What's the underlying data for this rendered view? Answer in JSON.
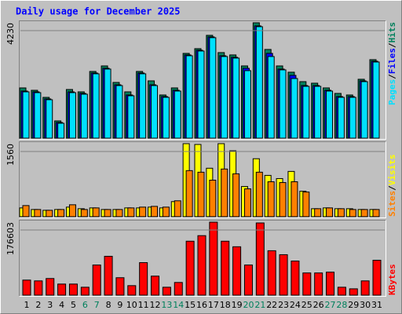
{
  "title": "Daily usage for December 2025",
  "chart_data": [
    {
      "type": "bar",
      "separator": "/",
      "ylim": [
        0,
        4230
      ],
      "yticks": [
        4230
      ],
      "series": [
        {
          "name": "Hits",
          "color": "#00805c",
          "values": [
            1842,
            1755,
            1496,
            633,
            1784,
            1698,
            2446,
            2648,
            2043,
            1698,
            2446,
            2101,
            1583,
            1842,
            3108,
            3281,
            3770,
            3137,
            3051,
            2648,
            4230,
            3252,
            2648,
            2418,
            2072,
            2015,
            1842,
            1640,
            1583,
            2159,
            2878
          ]
        },
        {
          "name": "Files",
          "color": "#0000ff",
          "values": [
            1727,
            1698,
            1439,
            576,
            1698,
            1641,
            2389,
            2562,
            1957,
            1583,
            2389,
            1957,
            1526,
            1756,
            3051,
            3224,
            3713,
            3022,
            2965,
            2561,
            4116,
            3108,
            2533,
            2302,
            1929,
            1929,
            1756,
            1526,
            1526,
            2101,
            2821
          ]
        },
        {
          "name": "Pages",
          "color": "#00e0ff",
          "values": [
            1698,
            1669,
            1410,
            547,
            1669,
            1612,
            2360,
            2533,
            1928,
            1554,
            2360,
            1928,
            1497,
            1727,
            3022,
            3195,
            3684,
            2993,
            2936,
            2475,
            4087,
            2993,
            2504,
            2187,
            1900,
            1900,
            1727,
            1497,
            1497,
            2072,
            2792
          ]
        }
      ]
    },
    {
      "type": "bar",
      "separator": "/",
      "ylim": [
        0,
        1560
      ],
      "yticks": [
        1560
      ],
      "series": [
        {
          "name": "Visits",
          "color": "#ffff00",
          "values": [
            187,
            153,
            136,
            153,
            204,
            170,
            187,
            153,
            153,
            187,
            187,
            204,
            187,
            322,
            1560,
            1543,
            1035,
            1560,
            1408,
            644,
            1238,
            882,
            814,
            967,
            543,
            170,
            187,
            170,
            170,
            153,
            153
          ]
        },
        {
          "name": "Sites",
          "color": "#ff8000",
          "values": [
            237,
            153,
            136,
            153,
            254,
            153,
            187,
            153,
            153,
            187,
            204,
            220,
            204,
            339,
            984,
            950,
            780,
            1018,
            916,
            594,
            950,
            746,
            729,
            746,
            526,
            170,
            187,
            170,
            153,
            153,
            153
          ]
        }
      ]
    },
    {
      "type": "bar",
      "ylim": [
        0,
        176603
      ],
      "yticks": [
        176603
      ],
      "categories": [
        "1",
        "2",
        "3",
        "4",
        "5",
        "6",
        "7",
        "8",
        "9",
        "10",
        "11",
        "12",
        "13",
        "14",
        "15",
        "16",
        "17",
        "18",
        "19",
        "20",
        "21",
        "22",
        "23",
        "24",
        "25",
        "26",
        "27",
        "28",
        "29",
        "30",
        "31"
      ],
      "weekend": [
        false,
        false,
        false,
        false,
        false,
        true,
        true,
        false,
        false,
        false,
        false,
        false,
        true,
        true,
        false,
        false,
        false,
        false,
        false,
        true,
        true,
        false,
        false,
        false,
        false,
        false,
        true,
        true,
        false,
        false,
        false
      ],
      "label_color": "#000000",
      "weekend_color": "#00805c",
      "series": [
        {
          "name": "KBytes",
          "color": "#ff0000",
          "values": [
            36472,
            34553,
            40312,
            26874,
            26874,
            19196,
            72945,
            94060,
            42231,
            23035,
            78704,
            46070,
            19196,
            30714,
            130533,
            143970,
            176603,
            130533,
            117096,
            72945,
            174684,
            107498,
            97900,
            82543,
            53749,
            53749,
            55668,
            19196,
            15357,
            34553,
            84462
          ]
        }
      ]
    }
  ]
}
